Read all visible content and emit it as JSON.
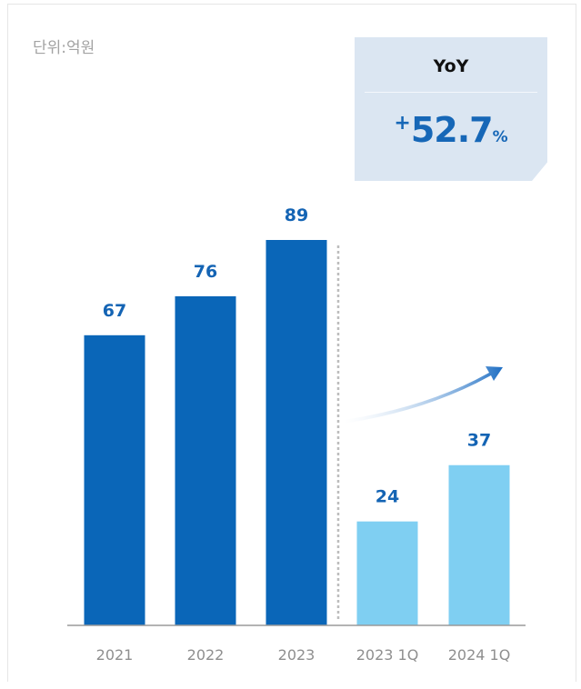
{
  "unit_label": "단위:억원",
  "yoy": {
    "title": "YoY",
    "sign": "+",
    "number": "52.7",
    "percent": "%"
  },
  "colors": {
    "annual_bar": "#0a66b8",
    "quarter_bar": "#7fcff2",
    "value_label": "#1464b4",
    "axis": "#9a9a9a",
    "divider": "#bdbdbd",
    "arrow": "#1f6fc4",
    "yoy_bg": "#dbe6f2"
  },
  "chart_data": {
    "type": "bar",
    "categories": [
      "2021",
      "2022",
      "2023",
      "2023 1Q",
      "2024 1Q"
    ],
    "values": [
      67,
      76,
      89,
      24,
      37
    ],
    "ylim": [
      0,
      89
    ],
    "groups": [
      "annual",
      "annual",
      "annual",
      "quarter",
      "quarter"
    ],
    "title": "",
    "xlabel": "",
    "ylabel": "",
    "grid": false,
    "legend": "none",
    "annotation": "YoY +52.7%"
  }
}
